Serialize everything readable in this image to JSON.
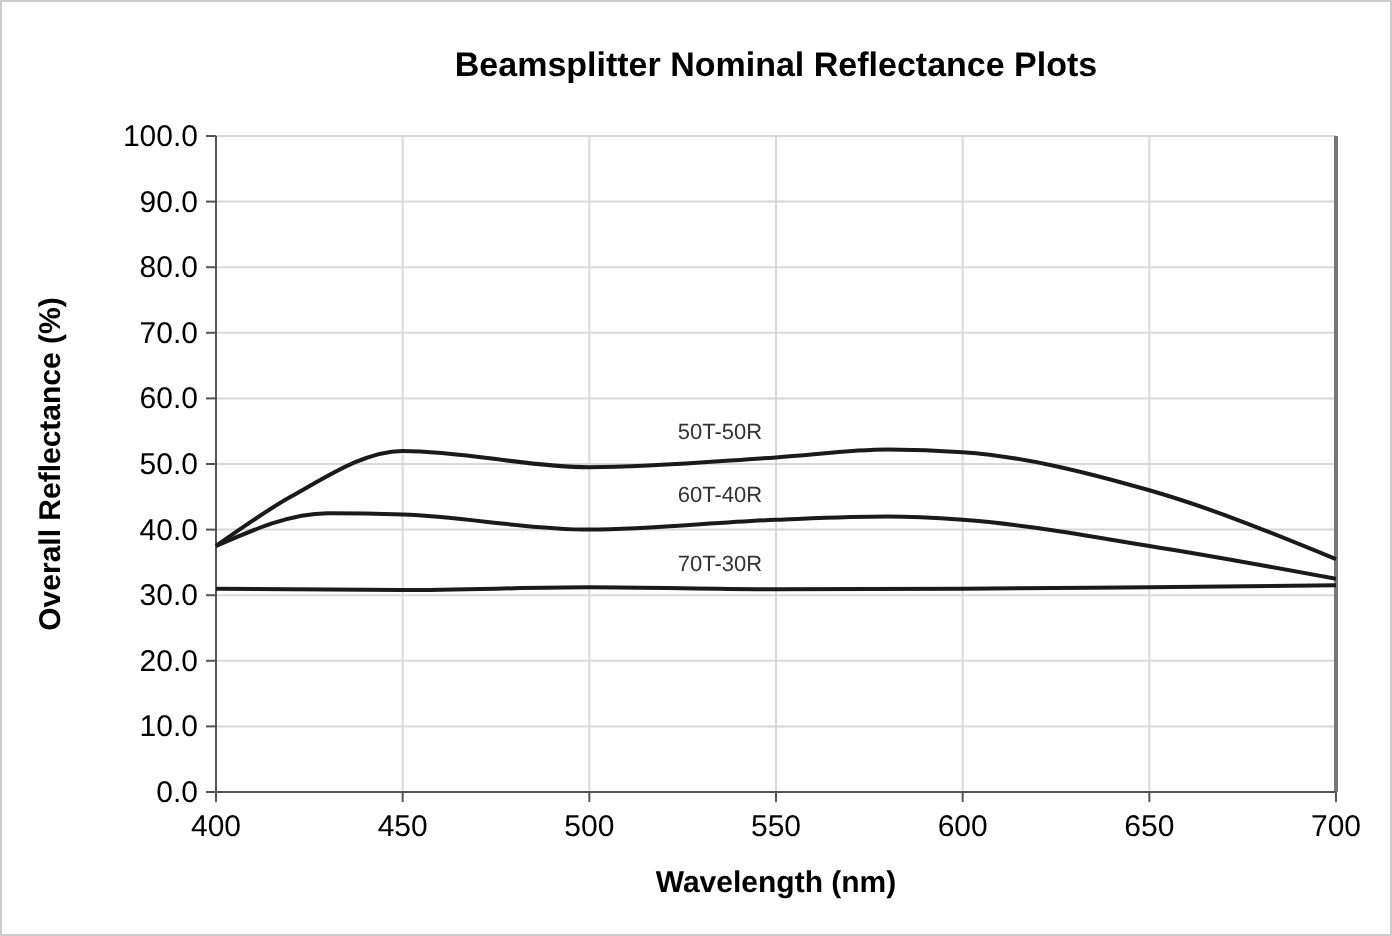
{
  "chart_data": {
    "type": "line",
    "title": "Beamsplitter Nominal Reflectance Plots",
    "xlabel": "Wavelength (nm)",
    "ylabel": "Overall Reflectance (%)",
    "xlim": [
      400,
      700
    ],
    "xticks": [
      400,
      450,
      500,
      550,
      600,
      650,
      700
    ],
    "ylim": [
      0,
      100
    ],
    "yticks": [
      {
        "value": 0,
        "label": "0.0"
      },
      {
        "value": 10,
        "label": "10.0"
      },
      {
        "value": 20,
        "label": "20.0"
      },
      {
        "value": 30,
        "label": "30.0"
      },
      {
        "value": 40,
        "label": "40.0"
      },
      {
        "value": 50,
        "label": "50.0"
      },
      {
        "value": 60,
        "label": "60.0"
      },
      {
        "value": 70,
        "label": "70.0"
      },
      {
        "value": 80,
        "label": "80.0"
      },
      {
        "value": 90,
        "label": "90.0"
      },
      {
        "value": 100,
        "label": "100.0"
      }
    ],
    "grid": true,
    "marker": "none",
    "line_style": "solid",
    "series": [
      {
        "name": "50T-50R",
        "color": "#1a1a1a",
        "x": [
          400,
          420,
          450,
          500,
          550,
          580,
          600,
          650,
          700
        ],
        "values": [
          37.5,
          45,
          52,
          49.5,
          51,
          52.2,
          51.8,
          46,
          35.5
        ]
      },
      {
        "name": "60T-40R",
        "color": "#1a1a1a",
        "x": [
          400,
          430,
          450,
          500,
          550,
          580,
          600,
          650,
          700
        ],
        "values": [
          37.5,
          42.5,
          42.3,
          40,
          41.5,
          42,
          41.5,
          37.5,
          32.5
        ]
      },
      {
        "name": "70T-30R",
        "color": "#1a1a1a",
        "x": [
          400,
          450,
          500,
          550,
          600,
          650,
          700
        ],
        "values": [
          31,
          30.8,
          31.2,
          30.9,
          31,
          31.2,
          31.5
        ]
      }
    ]
  }
}
